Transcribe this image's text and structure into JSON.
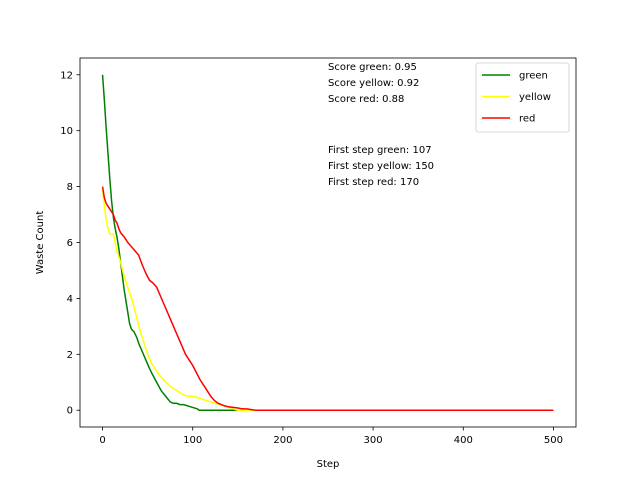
{
  "chart_data": {
    "type": "line",
    "title": "",
    "xlabel": "Step",
    "ylabel": "Waste Count",
    "xlim": [
      -25,
      525
    ],
    "ylim": [
      -0.6,
      12.6
    ],
    "xticks": [
      0,
      100,
      200,
      300,
      400,
      500
    ],
    "yticks": [
      0,
      2,
      4,
      6,
      8,
      10,
      12
    ],
    "xtick_labels": [
      "0",
      "100",
      "200",
      "300",
      "400",
      "500"
    ],
    "ytick_labels": [
      "0",
      "2",
      "4",
      "6",
      "8",
      "10",
      "12"
    ],
    "grid": false,
    "legend_position": "upper-right",
    "series": [
      {
        "name": "green",
        "color": "#008000",
        "points": [
          [
            0,
            12
          ],
          [
            2,
            11.1
          ],
          [
            4,
            10.1
          ],
          [
            6,
            9.2
          ],
          [
            8,
            8.3
          ],
          [
            10,
            7.5
          ],
          [
            12,
            6.9
          ],
          [
            14,
            6.5
          ],
          [
            16,
            6.2
          ],
          [
            18,
            5.8
          ],
          [
            20,
            5.3
          ],
          [
            22,
            4.8
          ],
          [
            24,
            4.3
          ],
          [
            26,
            3.9
          ],
          [
            28,
            3.5
          ],
          [
            30,
            3.1
          ],
          [
            32,
            2.9
          ],
          [
            35,
            2.8
          ],
          [
            38,
            2.6
          ],
          [
            40,
            2.4
          ],
          [
            44,
            2.1
          ],
          [
            48,
            1.8
          ],
          [
            52,
            1.5
          ],
          [
            55,
            1.3
          ],
          [
            60,
            1.0
          ],
          [
            65,
            0.7
          ],
          [
            70,
            0.5
          ],
          [
            75,
            0.3
          ],
          [
            78,
            0.25
          ],
          [
            82,
            0.25
          ],
          [
            86,
            0.2
          ],
          [
            90,
            0.2
          ],
          [
            95,
            0.15
          ],
          [
            100,
            0.1
          ],
          [
            105,
            0.05
          ],
          [
            107,
            0
          ],
          [
            500,
            0
          ]
        ]
      },
      {
        "name": "yellow",
        "color": "#ffff00",
        "points": [
          [
            0,
            7.9
          ],
          [
            2,
            7.3
          ],
          [
            4,
            6.8
          ],
          [
            6,
            6.5
          ],
          [
            8,
            6.3
          ],
          [
            10,
            6.3
          ],
          [
            12,
            6.3
          ],
          [
            14,
            6.0
          ],
          [
            16,
            5.7
          ],
          [
            18,
            5.5
          ],
          [
            20,
            5.3
          ],
          [
            23,
            4.9
          ],
          [
            26,
            4.6
          ],
          [
            30,
            4.2
          ],
          [
            34,
            3.8
          ],
          [
            38,
            3.3
          ],
          [
            42,
            2.8
          ],
          [
            46,
            2.4
          ],
          [
            50,
            2.0
          ],
          [
            54,
            1.7
          ],
          [
            58,
            1.5
          ],
          [
            62,
            1.3
          ],
          [
            66,
            1.15
          ],
          [
            70,
            1.0
          ],
          [
            75,
            0.85
          ],
          [
            80,
            0.75
          ],
          [
            85,
            0.65
          ],
          [
            90,
            0.55
          ],
          [
            95,
            0.5
          ],
          [
            100,
            0.5
          ],
          [
            105,
            0.45
          ],
          [
            110,
            0.4
          ],
          [
            115,
            0.35
          ],
          [
            120,
            0.3
          ],
          [
            125,
            0.25
          ],
          [
            130,
            0.2
          ],
          [
            135,
            0.15
          ],
          [
            140,
            0.1
          ],
          [
            145,
            0.05
          ],
          [
            150,
            0
          ],
          [
            500,
            0
          ]
        ]
      },
      {
        "name": "red",
        "color": "#ff0000",
        "points": [
          [
            0,
            8.0
          ],
          [
            2,
            7.6
          ],
          [
            4,
            7.4
          ],
          [
            6,
            7.3
          ],
          [
            8,
            7.2
          ],
          [
            10,
            7.1
          ],
          [
            12,
            7.0
          ],
          [
            14,
            6.8
          ],
          [
            16,
            6.7
          ],
          [
            18,
            6.5
          ],
          [
            20,
            6.35
          ],
          [
            24,
            6.2
          ],
          [
            28,
            6.0
          ],
          [
            32,
            5.85
          ],
          [
            36,
            5.7
          ],
          [
            40,
            5.55
          ],
          [
            44,
            5.2
          ],
          [
            48,
            4.9
          ],
          [
            52,
            4.65
          ],
          [
            56,
            4.55
          ],
          [
            60,
            4.4
          ],
          [
            64,
            4.1
          ],
          [
            68,
            3.8
          ],
          [
            72,
            3.5
          ],
          [
            76,
            3.2
          ],
          [
            80,
            2.9
          ],
          [
            84,
            2.6
          ],
          [
            88,
            2.3
          ],
          [
            92,
            2.0
          ],
          [
            96,
            1.8
          ],
          [
            100,
            1.6
          ],
          [
            104,
            1.35
          ],
          [
            108,
            1.1
          ],
          [
            112,
            0.9
          ],
          [
            116,
            0.7
          ],
          [
            120,
            0.5
          ],
          [
            124,
            0.35
          ],
          [
            128,
            0.25
          ],
          [
            132,
            0.2
          ],
          [
            136,
            0.15
          ],
          [
            140,
            0.12
          ],
          [
            145,
            0.1
          ],
          [
            150,
            0.08
          ],
          [
            155,
            0.05
          ],
          [
            160,
            0.05
          ],
          [
            165,
            0.02
          ],
          [
            170,
            0
          ],
          [
            500,
            0
          ]
        ]
      }
    ],
    "annotations": [
      "Score green: 0.95",
      "Score yellow: 0.92",
      "Score red: 0.88",
      "First step green: 107",
      "First step yellow: 150",
      "First step red: 170"
    ]
  }
}
